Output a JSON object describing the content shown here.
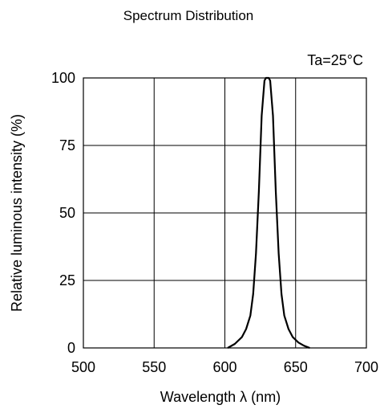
{
  "chart_data": {
    "type": "line",
    "title": "Spectrum Distribution",
    "annotation": "Ta=25°C",
    "xlabel": "Wavelength  λ (nm)",
    "ylabel": "Relative luminous intensity  (%)",
    "xlim": [
      500,
      700
    ],
    "ylim": [
      0,
      100
    ],
    "x_ticks": [
      "500",
      "550",
      "600",
      "650",
      "700"
    ],
    "y_ticks": [
      "0",
      "25",
      "50",
      "75",
      "100"
    ],
    "grid": true,
    "series": [
      {
        "x": [
          602,
          607,
          612,
          615,
          618,
          620,
          622,
          624,
          626,
          628,
          629,
          630,
          631,
          632,
          634,
          636,
          638,
          640,
          642,
          645,
          648,
          652,
          656,
          660
        ],
        "y": [
          0,
          1.5,
          4,
          7,
          12,
          20,
          35,
          58,
          86,
          99,
          100,
          100,
          100,
          99,
          86,
          58,
          35,
          20,
          12,
          7,
          4,
          2,
          0.8,
          0
        ]
      }
    ]
  }
}
